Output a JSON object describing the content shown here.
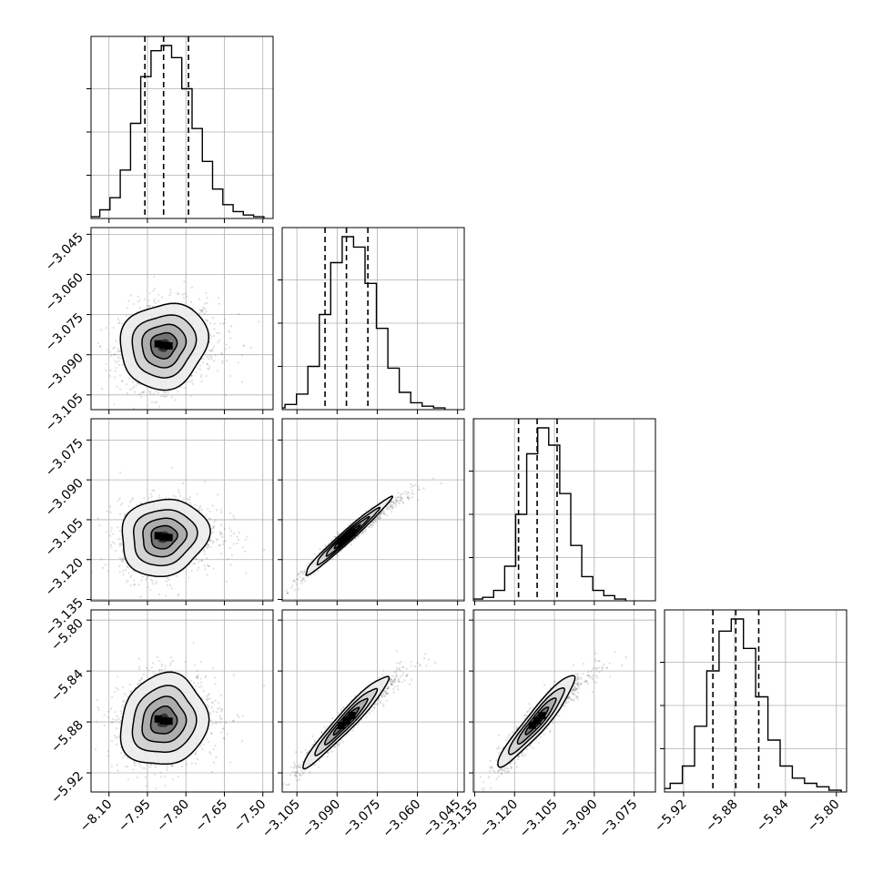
{
  "chart_data": {
    "type": "corner",
    "grid": true,
    "parameters": [
      {
        "axis_range": [
          -8.17,
          -7.46
        ],
        "ticks": [
          "-8.10",
          "-7.95",
          "-7.80",
          "-7.65",
          "-7.50"
        ],
        "tick_values": [
          -8.1,
          -7.95,
          -7.8,
          -7.65,
          -7.5
        ],
        "quantiles": [
          -7.96,
          -7.887,
          -7.79
        ]
      },
      {
        "axis_range": [
          -3.1105,
          -3.0425
        ],
        "ticks": [
          "-3.105",
          "-3.090",
          "-3.075",
          "-3.060",
          "-3.045"
        ],
        "tick_values": [
          -3.105,
          -3.09,
          -3.075,
          -3.06,
          -3.045
        ],
        "quantiles": [
          -3.0945,
          -3.0865,
          -3.0785
        ]
      },
      {
        "axis_range": [
          -3.1355,
          -3.067
        ],
        "ticks": [
          "-3.135",
          "-3.120",
          "-3.105",
          "-3.090",
          "-3.075"
        ],
        "tick_values": [
          -3.135,
          -3.12,
          -3.105,
          -3.09,
          -3.075
        ],
        "quantiles": [
          -3.1185,
          -3.1115,
          -3.104
        ]
      },
      {
        "axis_range": [
          -5.935,
          -5.792
        ],
        "ticks": [
          "-5.92",
          "-5.88",
          "-5.84",
          "-5.80"
        ],
        "tick_values": [
          -5.92,
          -5.88,
          -5.84,
          -5.8
        ],
        "quantiles": [
          -5.897,
          -5.879,
          -5.861
        ]
      }
    ],
    "histograms": [
      {
        "values": [
          0.01,
          0.05,
          0.12,
          0.28,
          0.55,
          0.82,
          0.97,
          1.0,
          0.93,
          0.75,
          0.52,
          0.33,
          0.17,
          0.08,
          0.04,
          0.02,
          0.01
        ]
      },
      {
        "values": [
          0.01,
          0.03,
          0.09,
          0.25,
          0.55,
          0.85,
          1.0,
          0.94,
          0.73,
          0.47,
          0.24,
          0.1,
          0.04,
          0.02,
          0.01
        ]
      },
      {
        "values": [
          0.01,
          0.02,
          0.06,
          0.2,
          0.5,
          0.85,
          1.0,
          0.9,
          0.62,
          0.32,
          0.14,
          0.06,
          0.03,
          0.01
        ]
      },
      {
        "values": [
          0.02,
          0.05,
          0.15,
          0.38,
          0.7,
          0.93,
          1.0,
          0.83,
          0.55,
          0.3,
          0.15,
          0.08,
          0.05,
          0.03,
          0.01
        ]
      }
    ],
    "pairs": [
      {
        "x": 0,
        "y": 1,
        "correlation": 0.1
      },
      {
        "x": 0,
        "y": 2,
        "correlation": 0.1
      },
      {
        "x": 1,
        "y": 2,
        "correlation": 0.98
      },
      {
        "x": 0,
        "y": 3,
        "correlation": 0.1
      },
      {
        "x": 1,
        "y": 3,
        "correlation": 0.96
      },
      {
        "x": 2,
        "y": 3,
        "correlation": 0.94
      }
    ],
    "title": "",
    "xlabel": "",
    "ylabel": ""
  }
}
